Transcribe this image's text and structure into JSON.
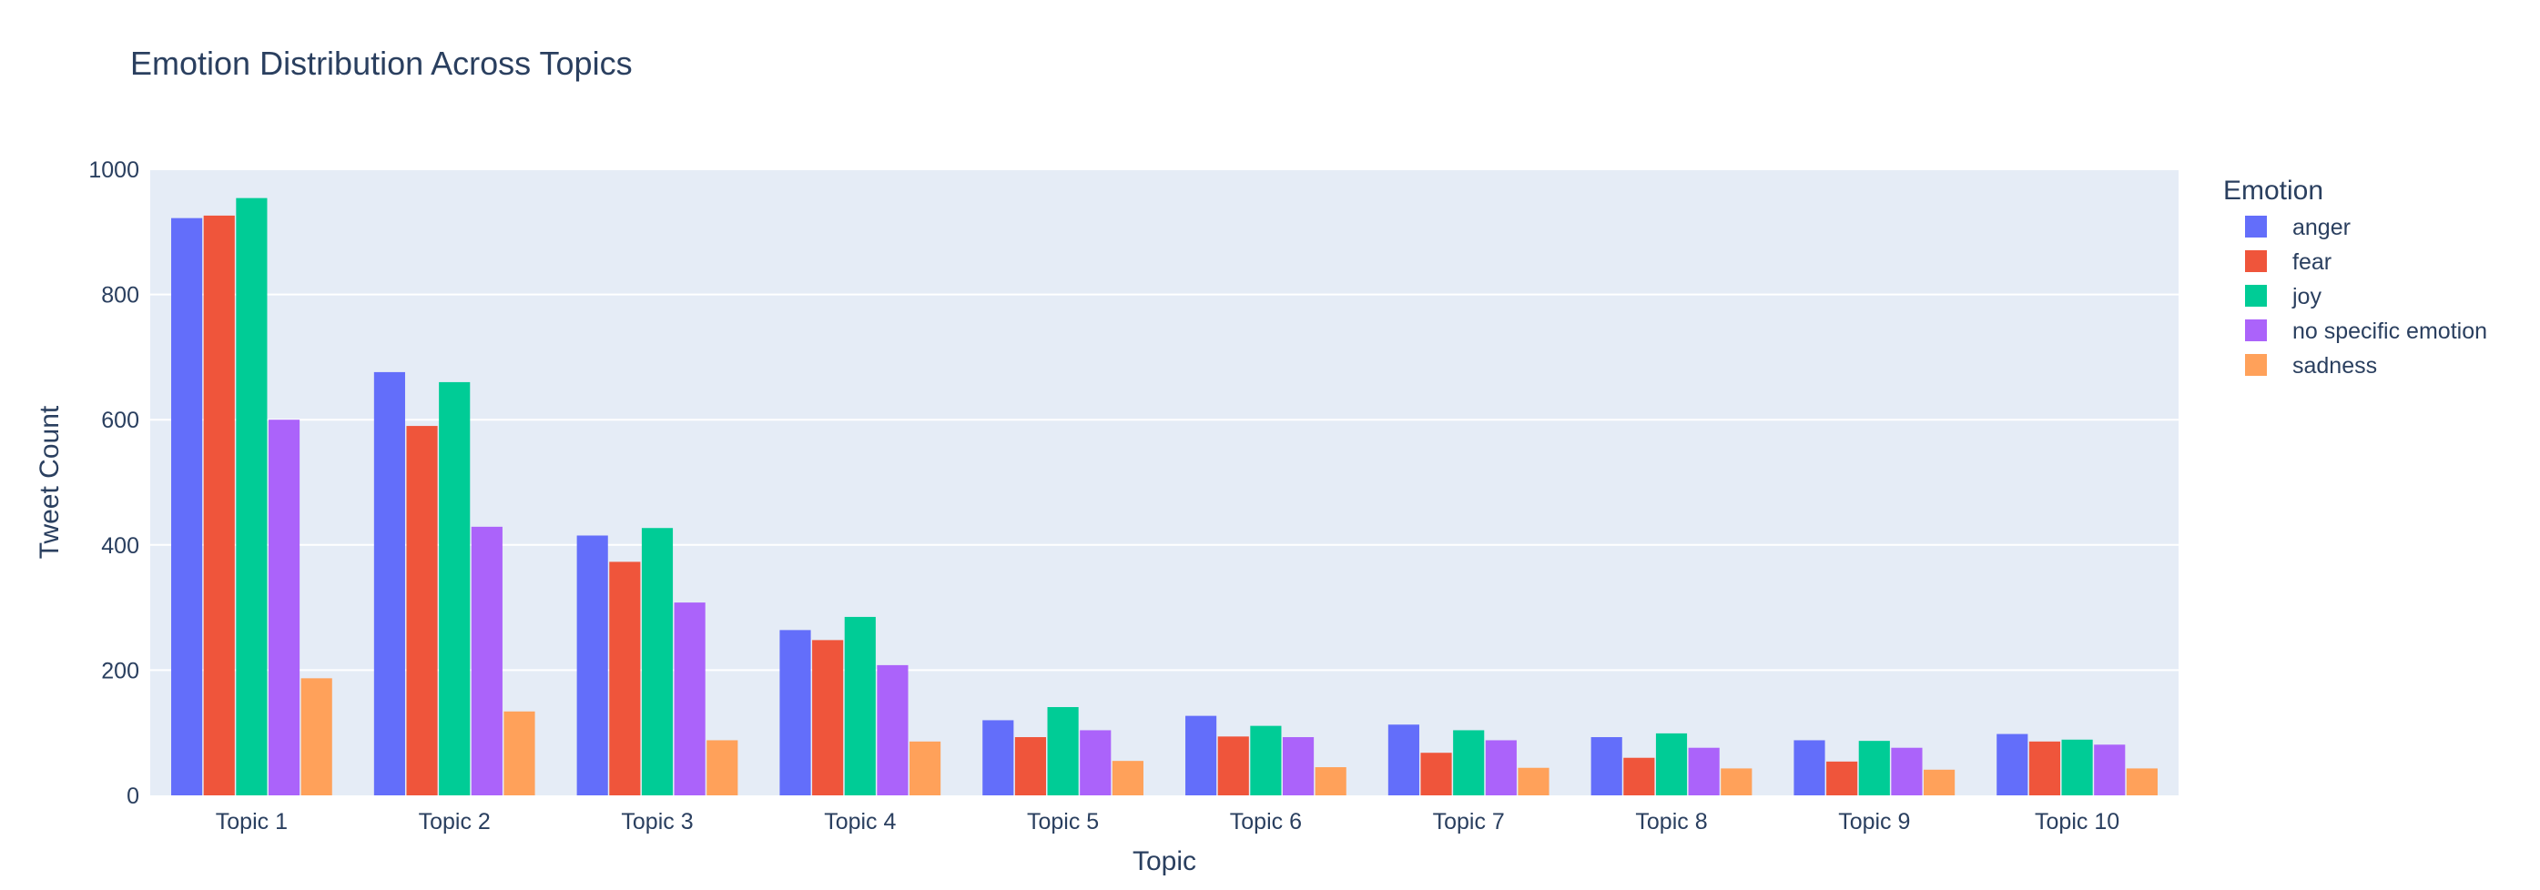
{
  "chart_data": {
    "type": "bar",
    "title": "Emotion Distribution Across Topics",
    "xlabel": "Topic",
    "ylabel": "Tweet Count",
    "ylim": [
      0,
      1000
    ],
    "yticks": [
      0,
      200,
      400,
      600,
      800,
      1000
    ],
    "grid": true,
    "legend_title": "Emotion",
    "legend_position": "right",
    "categories": [
      "Topic 1",
      "Topic 2",
      "Topic 3",
      "Topic 4",
      "Topic 5",
      "Topic 6",
      "Topic 7",
      "Topic 8",
      "Topic 9",
      "Topic 10"
    ],
    "series": [
      {
        "name": "anger",
        "color": "#636efa",
        "values": [
          922,
          676,
          415,
          264,
          120,
          127,
          113,
          93,
          88,
          98
        ]
      },
      {
        "name": "fear",
        "color": "#ef553b",
        "values": [
          926,
          590,
          373,
          248,
          93,
          94,
          68,
          60,
          54,
          86
        ]
      },
      {
        "name": "joy",
        "color": "#00cc96",
        "values": [
          954,
          660,
          427,
          285,
          141,
          111,
          104,
          99,
          87,
          89
        ]
      },
      {
        "name": "no specific emotion",
        "color": "#ab63fa",
        "values": [
          600,
          429,
          308,
          208,
          104,
          93,
          88,
          76,
          76,
          81
        ]
      },
      {
        "name": "sadness",
        "color": "#ffa15a",
        "values": [
          187,
          134,
          88,
          86,
          55,
          45,
          44,
          43,
          41,
          43
        ]
      }
    ]
  }
}
